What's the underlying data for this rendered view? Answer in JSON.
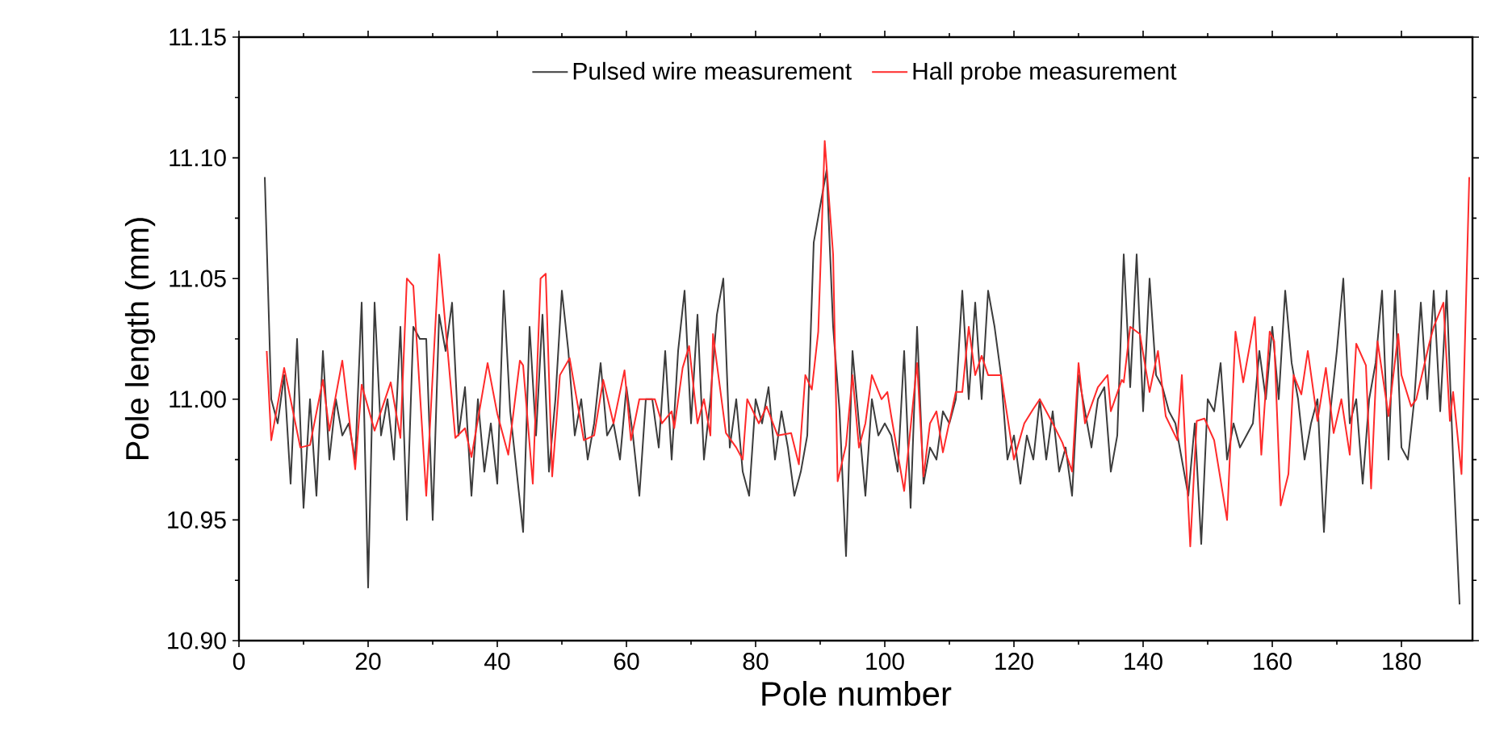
{
  "chart_data": {
    "type": "line",
    "xlabel": "Pole number",
    "ylabel": "Pole length (mm)",
    "xlim": [
      0,
      191
    ],
    "xticks": [
      0,
      20,
      40,
      60,
      80,
      100,
      120,
      140,
      160,
      180
    ],
    "ylim": [
      10.9,
      11.15
    ],
    "yticks": [
      {
        "value": 10.9,
        "label": "10.90"
      },
      10.95,
      {
        "value": 11.0,
        "label": "11.00"
      },
      11.05,
      {
        "value": 11.1,
        "label": "11.10"
      },
      11.15
    ],
    "grid": false,
    "legend": "top",
    "marker": "none",
    "line_style": "solid",
    "series": [
      {
        "name": "Pulsed wire measurement",
        "color": "#3c3c3c",
        "x": [
          4,
          5,
          6,
          7,
          8,
          9,
          10,
          11,
          12,
          13,
          14,
          15,
          16,
          17,
          18,
          19,
          20,
          21,
          22,
          23,
          24,
          25,
          26,
          27,
          28,
          29,
          30,
          31,
          32,
          33,
          34,
          35,
          36,
          37,
          38,
          39,
          40,
          41,
          42,
          43,
          44,
          45,
          46,
          47,
          48,
          49,
          50,
          51,
          52,
          53,
          54,
          55,
          56,
          57,
          58,
          59,
          60,
          61,
          62,
          63,
          64,
          65,
          66,
          67,
          68,
          69,
          70,
          71,
          72,
          73,
          74,
          75,
          76,
          77,
          78,
          79,
          80,
          81,
          82,
          83,
          84,
          85,
          86,
          87,
          88,
          89,
          90,
          91,
          92,
          93,
          94,
          95,
          96,
          97,
          98,
          99,
          100,
          101,
          102,
          103,
          104,
          105,
          106,
          107,
          108,
          109,
          110,
          111,
          112,
          113,
          114,
          115,
          116,
          117,
          118,
          119,
          120,
          121,
          122,
          123,
          124,
          125,
          126,
          127,
          128,
          129,
          130,
          131,
          132,
          133,
          134,
          135,
          136,
          137,
          138,
          139,
          140,
          141,
          142,
          143,
          144,
          145,
          146,
          147,
          148,
          149,
          150,
          151,
          152,
          153,
          154,
          155,
          156,
          157,
          158,
          159,
          160,
          161,
          162,
          163,
          164,
          165,
          166,
          167,
          168,
          169,
          170,
          171,
          172,
          173,
          174,
          175,
          176,
          177,
          178,
          179,
          180,
          181,
          182,
          183,
          184,
          185,
          186,
          187,
          188,
          189
        ],
        "values": [
          11.092,
          11.0,
          10.99,
          11.01,
          10.965,
          11.025,
          10.955,
          11.0,
          10.96,
          11.02,
          10.975,
          11.0,
          10.985,
          10.99,
          10.975,
          11.04,
          10.922,
          11.04,
          10.985,
          11.0,
          10.975,
          11.03,
          10.95,
          11.03,
          11.025,
          11.025,
          10.95,
          11.035,
          11.02,
          11.04,
          10.985,
          11.005,
          10.96,
          11.0,
          10.97,
          10.99,
          10.965,
          11.045,
          10.995,
          10.97,
          10.945,
          11.03,
          10.985,
          11.035,
          10.97,
          11.0,
          11.045,
          11.02,
          10.985,
          11.0,
          10.975,
          10.99,
          11.015,
          10.985,
          10.99,
          10.975,
          11.005,
          10.985,
          10.96,
          11.0,
          11.0,
          10.98,
          11.02,
          10.975,
          11.02,
          11.045,
          10.99,
          11.035,
          10.975,
          11.0,
          11.035,
          11.05,
          10.98,
          11.0,
          10.97,
          10.96,
          11.0,
          10.99,
          11.005,
          10.975,
          10.995,
          10.98,
          10.96,
          10.97,
          10.985,
          11.065,
          11.08,
          11.095,
          11.03,
          10.995,
          10.935,
          11.02,
          10.99,
          10.96,
          11.0,
          10.985,
          10.99,
          10.985,
          10.97,
          11.02,
          10.955,
          11.03,
          10.965,
          10.98,
          10.975,
          10.995,
          10.99,
          11.0,
          11.045,
          11.0,
          11.04,
          11.0,
          11.045,
          11.03,
          11.01,
          10.975,
          10.985,
          10.965,
          10.985,
          10.975,
          11.0,
          10.975,
          10.995,
          10.97,
          10.98,
          10.96,
          11.01,
          10.995,
          10.98,
          11.0,
          11.005,
          10.97,
          10.985,
          11.06,
          11.005,
          11.06,
          10.995,
          11.05,
          11.01,
          11.005,
          10.995,
          10.99,
          10.975,
          10.96,
          10.99,
          10.94,
          11.0,
          10.995,
          11.015,
          10.975,
          10.99,
          10.98,
          10.985,
          10.99,
          11.02,
          11.0,
          11.03,
          11.0,
          11.045,
          11.015,
          11.0,
          10.975,
          10.99,
          11.0,
          10.945,
          10.995,
          11.02,
          11.05,
          10.99,
          11.0,
          10.965,
          11.0,
          11.015,
          11.045,
          10.975,
          11.045,
          10.98,
          10.975,
          11.0,
          11.04,
          11.0,
          11.045,
          10.995,
          11.045,
          10.975,
          10.915
        ]
      },
      {
        "name": "Hall probe measurement",
        "color": "#ff2a2a",
        "x": [
          4.3,
          5,
          7,
          9.5,
          11,
          13,
          14,
          16,
          18,
          19,
          21,
          23.5,
          25,
          26,
          27,
          29,
          31,
          33.5,
          35,
          36,
          38.5,
          40,
          41.7,
          43.5,
          44,
          45.5,
          46.7,
          47.5,
          48.5,
          49.7,
          51.2,
          53.4,
          55,
          56.4,
          58,
          59.7,
          60.7,
          62,
          63,
          64.4,
          65.5,
          67,
          67.4,
          68.7,
          69.7,
          71,
          72,
          73,
          73.4,
          75.4,
          77,
          78,
          78.7,
          80.5,
          81.7,
          83.4,
          85.5,
          86.7,
          87.7,
          88.7,
          89.7,
          90.7,
          92,
          92.7,
          94,
          95,
          96,
          97,
          98,
          99.5,
          100.4,
          101,
          103,
          105,
          106,
          107,
          108,
          109,
          111,
          112,
          113,
          114,
          115,
          116,
          118,
          120,
          121.6,
          123,
          124,
          126,
          127.5,
          129,
          130,
          131,
          133,
          134.5,
          135,
          136.7,
          137,
          138,
          139.5,
          141,
          142.3,
          143.5,
          145.3,
          146,
          147.3,
          148.3,
          149.5,
          151,
          153,
          154.3,
          155.5,
          157.3,
          158.3,
          159.6,
          160.3,
          161.3,
          162.5,
          163.3,
          164.5,
          165.5,
          167,
          168.3,
          169.5,
          170.7,
          172,
          173,
          174.5,
          175.3,
          176.3,
          178,
          179.5,
          180,
          181.5,
          182.3,
          184.3,
          185,
          186.5,
          187.5,
          188,
          189.3,
          190.5
        ],
        "values": [
          11.02,
          10.983,
          11.013,
          10.98,
          10.981,
          11.008,
          10.987,
          11.016,
          10.971,
          11.006,
          10.987,
          11.007,
          10.984,
          11.05,
          11.047,
          10.96,
          11.06,
          10.984,
          10.988,
          10.976,
          11.015,
          10.994,
          10.977,
          11.016,
          11.014,
          10.965,
          11.05,
          11.052,
          10.968,
          11.01,
          11.017,
          10.983,
          10.985,
          11.008,
          10.99,
          11.012,
          10.983,
          11.0,
          11.0,
          11.0,
          10.99,
          10.995,
          10.988,
          11.013,
          11.022,
          10.99,
          11.0,
          10.985,
          11.027,
          10.986,
          10.98,
          10.975,
          11.0,
          10.99,
          10.997,
          10.985,
          10.986,
          10.973,
          11.01,
          11.004,
          11.028,
          11.107,
          11.06,
          10.966,
          10.981,
          11.01,
          10.98,
          10.99,
          11.01,
          11.0,
          11.003,
          10.993,
          10.962,
          11.015,
          10.968,
          10.99,
          10.995,
          10.978,
          11.003,
          11.003,
          11.03,
          11.01,
          11.018,
          11.01,
          11.01,
          10.975,
          10.99,
          10.996,
          11.0,
          10.99,
          10.982,
          10.97,
          11.015,
          10.99,
          11.005,
          11.01,
          10.995,
          11.008,
          11.007,
          11.03,
          11.027,
          11.003,
          11.02,
          10.993,
          10.983,
          11.01,
          10.939,
          10.991,
          10.992,
          10.983,
          10.95,
          11.028,
          11.007,
          11.034,
          10.977,
          11.028,
          11.024,
          10.956,
          10.969,
          11.01,
          11.002,
          11.02,
          10.991,
          11.013,
          10.986,
          11.0,
          10.977,
          11.023,
          11.014,
          10.963,
          11.024,
          10.993,
          11.027,
          11.01,
          10.997,
          11.0,
          11.023,
          11.03,
          11.04,
          10.991,
          11.003,
          10.969,
          11.092
        ]
      }
    ]
  }
}
